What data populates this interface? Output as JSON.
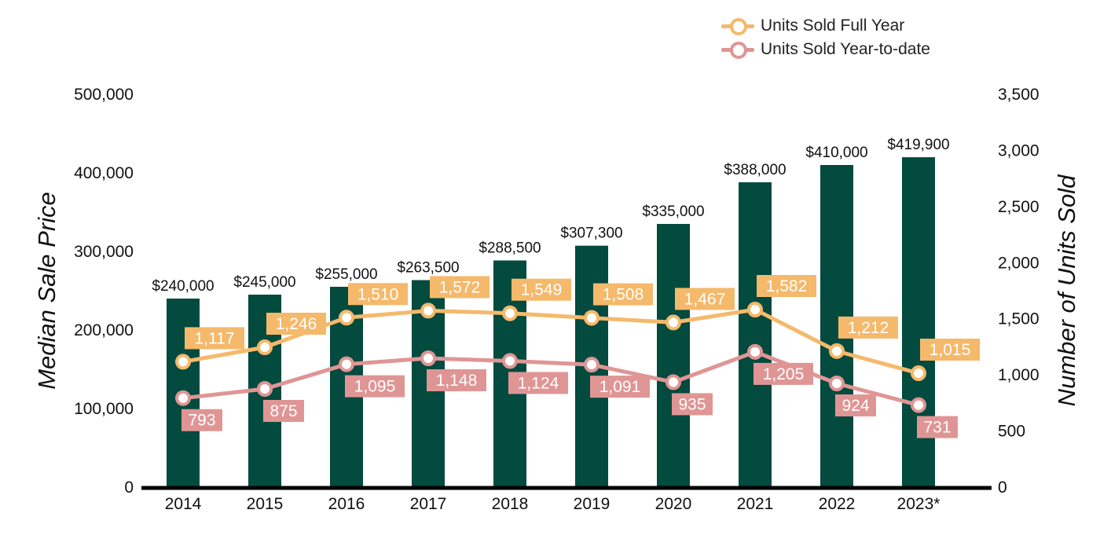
{
  "colors": {
    "bar": "#034a3f",
    "full_year": "#f5b96b",
    "ytd": "#e09595",
    "axis": "#000000",
    "text": "#111111"
  },
  "legend": [
    {
      "name": "Units Sold Full Year",
      "color": "#f5b96b"
    },
    {
      "name": "Units Sold Year-to-date",
      "color": "#e09595"
    }
  ],
  "chart_data": {
    "type": "bar",
    "categories": [
      "2014",
      "2015",
      "2016",
      "2017",
      "2018",
      "2019",
      "2020",
      "2021",
      "2022",
      "2023*"
    ],
    "bar_series": {
      "values": [
        240000,
        245000,
        255000,
        263500,
        288500,
        307300,
        335000,
        388000,
        410000,
        419900
      ],
      "labels": [
        "$240,000",
        "$245,000",
        "$255,000",
        "$263,500",
        "$288,500",
        "$307,300",
        "$335,000",
        "$388,000",
        "$410,000",
        "$419,900"
      ],
      "axis": "left"
    },
    "line_series": [
      {
        "name": "Units Sold Full Year",
        "type": "line",
        "axis": "right",
        "values": [
          1117,
          1246,
          1510,
          1572,
          1549,
          1508,
          1467,
          1582,
          1212,
          1015
        ],
        "labels": [
          "1,117",
          "1,246",
          "1,510",
          "1,572",
          "1,549",
          "1,508",
          "1,467",
          "1,582",
          "1,212",
          "1,015"
        ]
      },
      {
        "name": "Units Sold Year-to-date",
        "type": "line",
        "axis": "right",
        "values": [
          793,
          875,
          1095,
          1148,
          1124,
          1091,
          935,
          1205,
          924,
          731
        ],
        "labels": [
          "793",
          "875",
          "1,095",
          "1,148",
          "1,124",
          "1,091",
          "935",
          "1,205",
          "924",
          "731"
        ]
      }
    ],
    "ylabel": "Median Sale Price",
    "y2label": "Number of Units Sold",
    "ylim": [
      0,
      500000
    ],
    "y2lim": [
      0,
      3500
    ],
    "yticks": [
      "0",
      "100,000",
      "200,000",
      "300,000",
      "400,000",
      "500,000"
    ],
    "y2ticks": [
      "0",
      "500",
      "1,000",
      "1,500",
      "2,000",
      "2,500",
      "3,000",
      "3,500"
    ],
    "legend_position": "top-right",
    "grid": false
  }
}
